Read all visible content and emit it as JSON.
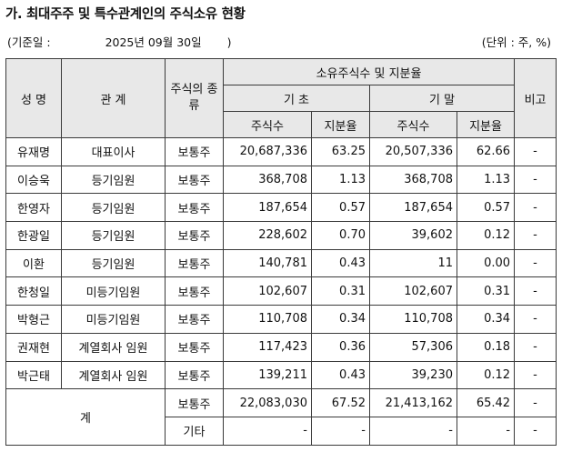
{
  "title": "가. 최대주주 및 특수관계인의 주식소유 현황",
  "base_date_label": "(기준일 :",
  "base_date": "2025년 09월 30일",
  "base_date_close": ")",
  "unit": "(단위 : 주, %)",
  "headers": {
    "name": "성 명",
    "relation": "관 계",
    "stock_type": "주식의 종류",
    "ownership": "소유주식수 및 지분율",
    "begin": "기 초",
    "end": "기 말",
    "shares": "주식수",
    "ratio": "지분율",
    "note": "비고"
  },
  "rows": [
    {
      "name": "유재명",
      "relation": "대표이사",
      "type": "보통주",
      "begin_shares": "20,687,336",
      "begin_ratio": "63.25",
      "end_shares": "20,507,336",
      "end_ratio": "62.66",
      "note": "-"
    },
    {
      "name": "이승욱",
      "relation": "등기임원",
      "type": "보통주",
      "begin_shares": "368,708",
      "begin_ratio": "1.13",
      "end_shares": "368,708",
      "end_ratio": "1.13",
      "note": "-"
    },
    {
      "name": "한영자",
      "relation": "등기임원",
      "type": "보통주",
      "begin_shares": "187,654",
      "begin_ratio": "0.57",
      "end_shares": "187,654",
      "end_ratio": "0.57",
      "note": "-"
    },
    {
      "name": "한광일",
      "relation": "등기임원",
      "type": "보통주",
      "begin_shares": "228,602",
      "begin_ratio": "0.70",
      "end_shares": "39,602",
      "end_ratio": "0.12",
      "note": "-"
    },
    {
      "name": "이환",
      "relation": "등기임원",
      "type": "보통주",
      "begin_shares": "140,781",
      "begin_ratio": "0.43",
      "end_shares": "11",
      "end_ratio": "0.00",
      "note": "-"
    },
    {
      "name": "한청일",
      "relation": "미등기임원",
      "type": "보통주",
      "begin_shares": "102,607",
      "begin_ratio": "0.31",
      "end_shares": "102,607",
      "end_ratio": "0.31",
      "note": "-"
    },
    {
      "name": "박형근",
      "relation": "미등기임원",
      "type": "보통주",
      "begin_shares": "110,708",
      "begin_ratio": "0.34",
      "end_shares": "110,708",
      "end_ratio": "0.34",
      "note": "-"
    },
    {
      "name": "권재현",
      "relation": "계열회사 임원",
      "type": "보통주",
      "begin_shares": "117,423",
      "begin_ratio": "0.36",
      "end_shares": "57,306",
      "end_ratio": "0.18",
      "note": "-"
    },
    {
      "name": "박근태",
      "relation": "계열회사 임원",
      "type": "보통주",
      "begin_shares": "139,211",
      "begin_ratio": "0.43",
      "end_shares": "39,230",
      "end_ratio": "0.12",
      "note": "-"
    }
  ],
  "total": {
    "label": "계",
    "common": {
      "type": "보통주",
      "begin_shares": "22,083,030",
      "begin_ratio": "67.52",
      "end_shares": "21,413,162",
      "end_ratio": "65.42",
      "note": "-"
    },
    "other": {
      "type": "기타",
      "begin_shares": "-",
      "begin_ratio": "-",
      "end_shares": "-",
      "end_ratio": "-",
      "note": "-"
    }
  }
}
